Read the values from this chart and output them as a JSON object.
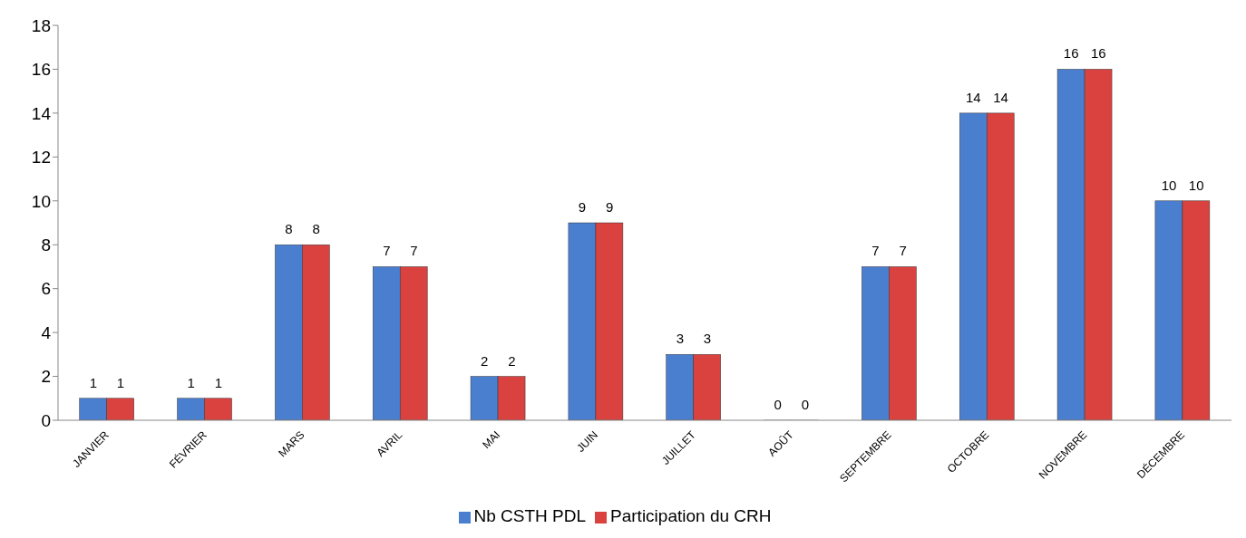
{
  "chart_data": {
    "type": "bar",
    "categories": [
      "JANVIER",
      "FÉVRIER",
      "MARS",
      "AVRIL",
      "MAI",
      "JUIN",
      "JUILLET",
      "AOÛT",
      "SEPTEMBRE",
      "OCTOBRE",
      "NOVEMBRE",
      "DÉCEMBRE"
    ],
    "series": [
      {
        "name": "Nb CSTH PDL",
        "color": "#4a7fd0",
        "values": [
          1,
          1,
          8,
          7,
          2,
          9,
          3,
          0,
          7,
          14,
          16,
          10
        ]
      },
      {
        "name": "Participation du CRH",
        "color": "#d9423f",
        "values": [
          1,
          1,
          8,
          7,
          2,
          9,
          3,
          0,
          7,
          14,
          16,
          10
        ]
      }
    ],
    "ylim": [
      0,
      18
    ],
    "yticks": [
      0,
      2,
      4,
      6,
      8,
      10,
      12,
      14,
      16,
      18
    ],
    "grid": false,
    "legend": "bottom",
    "data_labels": true
  }
}
